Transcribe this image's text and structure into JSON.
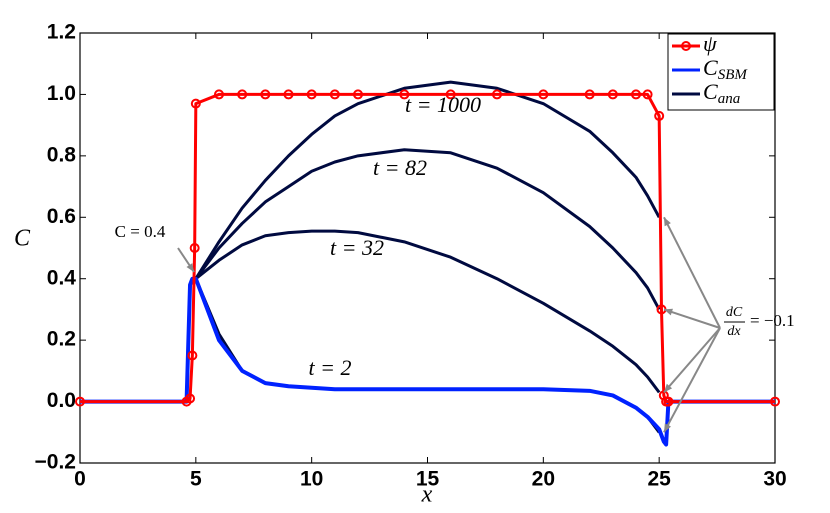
{
  "chart_data": {
    "type": "line",
    "xlabel": "x",
    "ylabel": "C",
    "x": [
      0,
      4.6,
      4.75,
      4.85,
      4.95,
      5,
      6,
      7,
      8,
      9,
      10,
      11,
      12,
      14,
      16,
      18,
      20,
      22,
      23,
      24,
      24.5,
      25,
      25.1,
      25.2,
      25.3,
      25.4,
      30
    ],
    "xlim": [
      0,
      30
    ],
    "xticks": [
      0,
      5,
      10,
      15,
      20,
      25,
      30
    ],
    "ylim": [
      -0.2,
      1.2
    ],
    "yticks": [
      {
        "value": -0.2,
        "label": "−0.2"
      },
      {
        "value": 0,
        "label": "0.0"
      },
      0.2,
      0.4,
      0.6,
      0.8,
      {
        "value": 1,
        "label": "1.0"
      },
      1.2
    ],
    "series": [
      {
        "name": "ψ",
        "color": "#ff0000",
        "markers": true,
        "values": [
          0,
          0,
          0.01,
          0.15,
          0.5,
          0.97,
          1,
          1,
          1,
          1,
          1,
          1,
          1,
          1,
          1,
          1,
          1,
          1,
          1,
          1,
          1,
          0.93,
          0.3,
          0.02,
          0,
          0,
          0
        ]
      },
      {
        "name": "C_SBM",
        "color": "#0022ff",
        "values": [
          0,
          0,
          0.38,
          0.4,
          0.4,
          0.4,
          0.2,
          0.1,
          0.06,
          0.05,
          0.045,
          0.04,
          0.04,
          0.04,
          0.04,
          0.04,
          0.04,
          0.035,
          0.02,
          -0.02,
          -0.05,
          -0.09,
          -0.11,
          -0.13,
          -0.14,
          0,
          0
        ]
      },
      {
        "name": "C_ana",
        "color": "#000a40",
        "label": "t = 2",
        "values": [
          null,
          null,
          null,
          null,
          null,
          0.4,
          0.22,
          0.1,
          0.06,
          0.05,
          0.045,
          0.04,
          0.04,
          0.04,
          0.04,
          0.04,
          0.04,
          0.035,
          0.02,
          -0.02,
          -0.05,
          -0.1,
          null,
          null,
          null,
          null,
          null
        ]
      },
      {
        "name": "C_ana",
        "color": "#000a40",
        "label": "t = 32",
        "values": [
          null,
          null,
          null,
          null,
          null,
          0.4,
          0.46,
          0.51,
          0.54,
          0.55,
          0.555,
          0.555,
          0.55,
          0.52,
          0.47,
          0.4,
          0.32,
          0.23,
          0.18,
          0.12,
          0.08,
          0.03,
          null,
          null,
          null,
          null,
          null
        ]
      },
      {
        "name": "C_ana",
        "color": "#000a40",
        "label": "t = 82",
        "values": [
          null,
          null,
          null,
          null,
          null,
          0.4,
          0.5,
          0.58,
          0.65,
          0.7,
          0.75,
          0.78,
          0.8,
          0.82,
          0.81,
          0.76,
          0.68,
          0.57,
          0.5,
          0.42,
          0.37,
          0.3,
          null,
          null,
          null,
          null,
          null
        ]
      },
      {
        "name": "C_ana",
        "color": "#000a40",
        "label": "t = 1000",
        "values": [
          null,
          null,
          null,
          null,
          null,
          0.4,
          0.52,
          0.63,
          0.72,
          0.8,
          0.87,
          0.93,
          0.97,
          1.02,
          1.04,
          1.02,
          0.97,
          0.88,
          0.81,
          0.73,
          0.67,
          0.6,
          null,
          null,
          null,
          null,
          null
        ]
      }
    ],
    "annotations": [
      {
        "text": "C = 0.4"
      },
      {
        "numerator": "dC",
        "denominator": "dx",
        "text": "= −0.1"
      }
    ]
  }
}
